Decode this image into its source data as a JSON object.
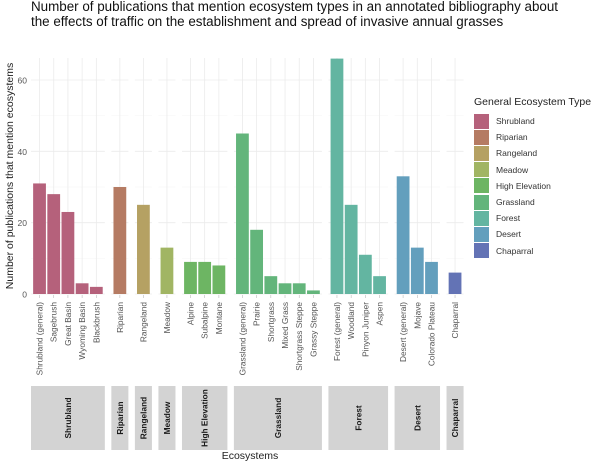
{
  "chart_data": {
    "type": "bar",
    "title": "Number of publications that mention ecosystem types in an annotated bibliography about the effects of traffic on the establishment and spread of invasive annual grasses",
    "xlabel": "Ecosystems",
    "ylabel": "Number of publications that mention ecosystems",
    "ylim": [
      0,
      69
    ],
    "yticks": [
      0,
      20,
      40,
      60
    ],
    "grid": true,
    "legend": {
      "title": "General Ecosystem Type",
      "placement": "right"
    },
    "facets": [
      {
        "name": "Shrubland",
        "color": "#b5617b",
        "categories": [
          "Shrubland (general)",
          "Sagebrush",
          "Great Basin",
          "Wyoming Basin",
          "Blackbrush"
        ],
        "values": [
          31,
          28,
          23,
          3,
          2
        ]
      },
      {
        "name": "Riparian",
        "color": "#b57b63",
        "categories": [
          "Riparian"
        ],
        "values": [
          30
        ]
      },
      {
        "name": "Rangeland",
        "color": "#b5a163",
        "categories": [
          "Rangeland"
        ],
        "values": [
          25
        ]
      },
      {
        "name": "Meadow",
        "color": "#a1b563",
        "categories": [
          "Meadow"
        ],
        "values": [
          13
        ]
      },
      {
        "name": "High Elevation",
        "color": "#6db563",
        "categories": [
          "Alpine",
          "Subalpine",
          "Montane"
        ],
        "values": [
          9,
          9,
          8
        ]
      },
      {
        "name": "Grassland",
        "color": "#63b57b",
        "categories": [
          "Grassland (general)",
          "Prairie",
          "Shortgrass",
          "Mixed Grass",
          "Shortgrass Steppe",
          "Grassy Steppe"
        ],
        "values": [
          45,
          18,
          5,
          3,
          3,
          1
        ]
      },
      {
        "name": "Forest",
        "color": "#63b5a1",
        "categories": [
          "Forest (general)",
          "Woodland",
          "Pinyon Juniper",
          "Aspen"
        ],
        "values": [
          66,
          25,
          11,
          5
        ]
      },
      {
        "name": "Desert",
        "color": "#639fbd",
        "categories": [
          "Desert (general)",
          "Mojave",
          "Colorado Plateau"
        ],
        "values": [
          33,
          13,
          9
        ]
      },
      {
        "name": "Chaparral",
        "color": "#6373b5",
        "categories": [
          "Chaparral"
        ],
        "values": [
          6
        ]
      }
    ]
  }
}
